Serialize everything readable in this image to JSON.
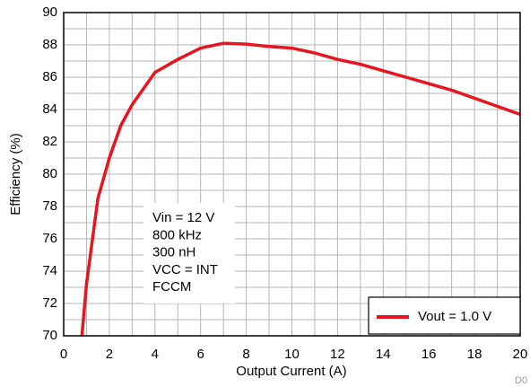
{
  "chart_data": {
    "type": "line",
    "x_label": "Output Current (A)",
    "y_label": "Efficiency (%)",
    "x": [
      0.8,
      1.0,
      1.5,
      2,
      2.5,
      3,
      4,
      5,
      6,
      7,
      8,
      9,
      10,
      11,
      12,
      13,
      14,
      15,
      16,
      17,
      18,
      19,
      20
    ],
    "series": [
      {
        "name": "Vout = 1.0 V",
        "color": "#e8141e",
        "values": [
          70,
          73.2,
          78.5,
          81,
          83,
          84.3,
          86.3,
          87.1,
          87.8,
          88.1,
          88.05,
          87.9,
          87.8,
          87.5,
          87.1,
          86.8,
          86.4,
          86.0,
          85.6,
          85.2,
          84.7,
          84.2,
          83.7
        ]
      }
    ],
    "xlim": [
      0,
      20
    ],
    "ylim": [
      70,
      90
    ],
    "xticks": [
      0,
      2,
      4,
      6,
      8,
      10,
      12,
      14,
      16,
      18,
      20
    ],
    "yticks": [
      70,
      72,
      74,
      76,
      78,
      80,
      82,
      84,
      86,
      88,
      90
    ],
    "x_minor_ticks": [
      1,
      3,
      5,
      7,
      9,
      11,
      13,
      15,
      17,
      19
    ],
    "y_minor_ticks": [
      71,
      73,
      75,
      77,
      79,
      81,
      83,
      85,
      87,
      89
    ],
    "grid": true,
    "legend": "lower right",
    "annotation": [
      "Vin = 12 V",
      "800 kHz",
      "300 nH",
      "VCC = INT",
      "FCCM"
    ],
    "figure_id": "D0"
  }
}
